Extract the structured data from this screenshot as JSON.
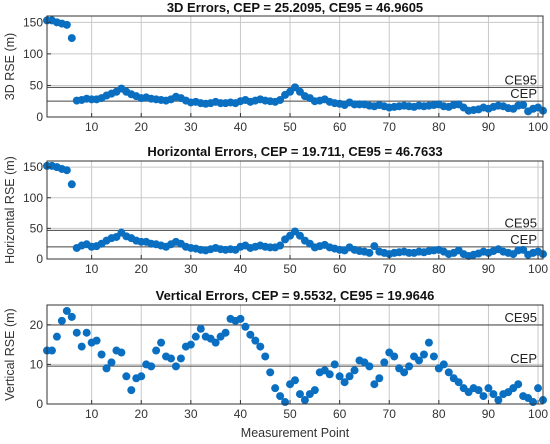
{
  "chart_data": [
    {
      "type": "scatter",
      "title": "3D Errors, CEP = 25.2095, CE95 = 46.9605",
      "ylabel": "3D RSE (m)",
      "xlabel": "",
      "xlim": [
        1,
        101
      ],
      "ylim": [
        0,
        160
      ],
      "yticks": [
        0,
        50,
        100,
        150
      ],
      "xticks": [
        10,
        20,
        30,
        40,
        50,
        60,
        70,
        80,
        90,
        100
      ],
      "grid": true,
      "ref_lines": [
        {
          "label": "CE95",
          "value": 46.9605
        },
        {
          "label": "CEP",
          "value": 25.2095
        }
      ],
      "y": [
        153,
        153,
        150,
        148,
        146,
        125,
        26,
        27,
        29,
        28,
        28,
        30,
        34,
        37,
        40,
        45,
        40,
        36,
        33,
        30,
        31,
        29,
        28,
        27,
        26,
        28,
        32,
        30,
        26,
        23,
        24,
        22,
        21,
        22,
        24,
        22,
        22,
        23,
        22,
        25,
        27,
        24,
        26,
        28,
        26,
        25,
        24,
        27,
        35,
        40,
        47,
        40,
        33,
        30,
        25,
        26,
        28,
        24,
        22,
        21,
        19,
        23,
        20,
        20,
        20,
        18,
        17,
        19,
        17,
        15,
        16,
        17,
        18,
        17,
        16,
        18,
        17,
        18,
        19,
        20,
        17,
        16,
        19,
        20,
        15,
        10,
        11,
        12,
        15,
        13,
        16,
        18,
        17,
        14,
        13,
        18,
        19,
        9,
        13,
        15,
        10
      ]
    },
    {
      "type": "scatter",
      "title": "Horizontal Errors, CEP = 19.711, CE95 = 46.7633",
      "ylabel": "Horizontal RSE (m)",
      "xlabel": "",
      "xlim": [
        1,
        101
      ],
      "ylim": [
        0,
        160
      ],
      "yticks": [
        0,
        50,
        100,
        150
      ],
      "xticks": [
        10,
        20,
        30,
        40,
        50,
        60,
        70,
        80,
        90,
        100
      ],
      "grid": true,
      "ref_lines": [
        {
          "label": "CE95",
          "value": 46.7633
        },
        {
          "label": "CEP",
          "value": 19.711
        }
      ],
      "y": [
        152,
        152,
        150,
        147,
        145,
        122,
        18,
        22,
        24,
        20,
        21,
        25,
        30,
        34,
        36,
        43,
        37,
        34,
        30,
        28,
        28,
        25,
        24,
        22,
        20,
        24,
        28,
        25,
        20,
        18,
        17,
        15,
        14,
        16,
        18,
        16,
        15,
        16,
        15,
        20,
        22,
        18,
        20,
        22,
        20,
        19,
        19,
        22,
        32,
        38,
        45,
        38,
        30,
        25,
        19,
        21,
        23,
        19,
        17,
        15,
        14,
        19,
        15,
        13,
        12,
        10,
        21,
        12,
        10,
        8,
        10,
        11,
        12,
        10,
        10,
        12,
        11,
        13,
        14,
        15,
        12,
        8,
        10,
        14,
        8,
        5,
        7,
        9,
        12,
        10,
        13,
        16,
        12,
        10,
        8,
        14,
        15,
        7,
        10,
        12,
        8
      ]
    },
    {
      "type": "scatter",
      "title": "Vertical Errors, CEP = 9.5532, CE95 = 19.9646",
      "ylabel": "Vertical RSE (m)",
      "xlabel": "Measurement Point",
      "xlim": [
        1,
        101
      ],
      "ylim": [
        0,
        25
      ],
      "yticks": [
        0,
        10,
        20
      ],
      "xticks": [
        10,
        20,
        30,
        40,
        50,
        60,
        70,
        80,
        90,
        100
      ],
      "grid": true,
      "ref_lines": [
        {
          "label": "CE95",
          "value": 19.9646
        },
        {
          "label": "CEP",
          "value": 9.5532
        }
      ],
      "y": [
        13.5,
        13.5,
        17,
        21,
        23.5,
        22,
        18,
        14.5,
        18,
        15.5,
        16,
        12.5,
        9,
        10.5,
        13.5,
        13,
        7,
        3.5,
        6.5,
        7,
        10,
        9.5,
        13.5,
        15.5,
        12,
        11.5,
        9.5,
        11.5,
        14.5,
        15,
        17,
        19,
        17,
        16.5,
        15.5,
        17,
        18,
        21.5,
        21,
        21.5,
        19.5,
        17.5,
        16,
        14.5,
        12,
        8,
        4,
        2,
        0.5,
        5,
        6,
        2.5,
        1,
        2.5,
        3.5,
        8,
        8.5,
        7.5,
        10,
        7,
        5.5,
        7,
        8.5,
        11,
        10.5,
        9.5,
        5,
        6.5,
        10.5,
        13,
        12,
        9,
        8,
        9.5,
        12,
        11,
        12.5,
        15.5,
        12,
        9,
        10,
        8,
        6.5,
        5.5,
        4,
        3,
        4,
        3.5,
        2,
        4,
        2.5,
        1,
        2.5,
        3,
        4,
        5,
        2,
        1.5,
        0.5,
        4,
        1
      ]
    }
  ],
  "colors": {
    "marker": "#0b6fc1",
    "ref_line": "#444444",
    "grid": "#c8c8c8"
  }
}
